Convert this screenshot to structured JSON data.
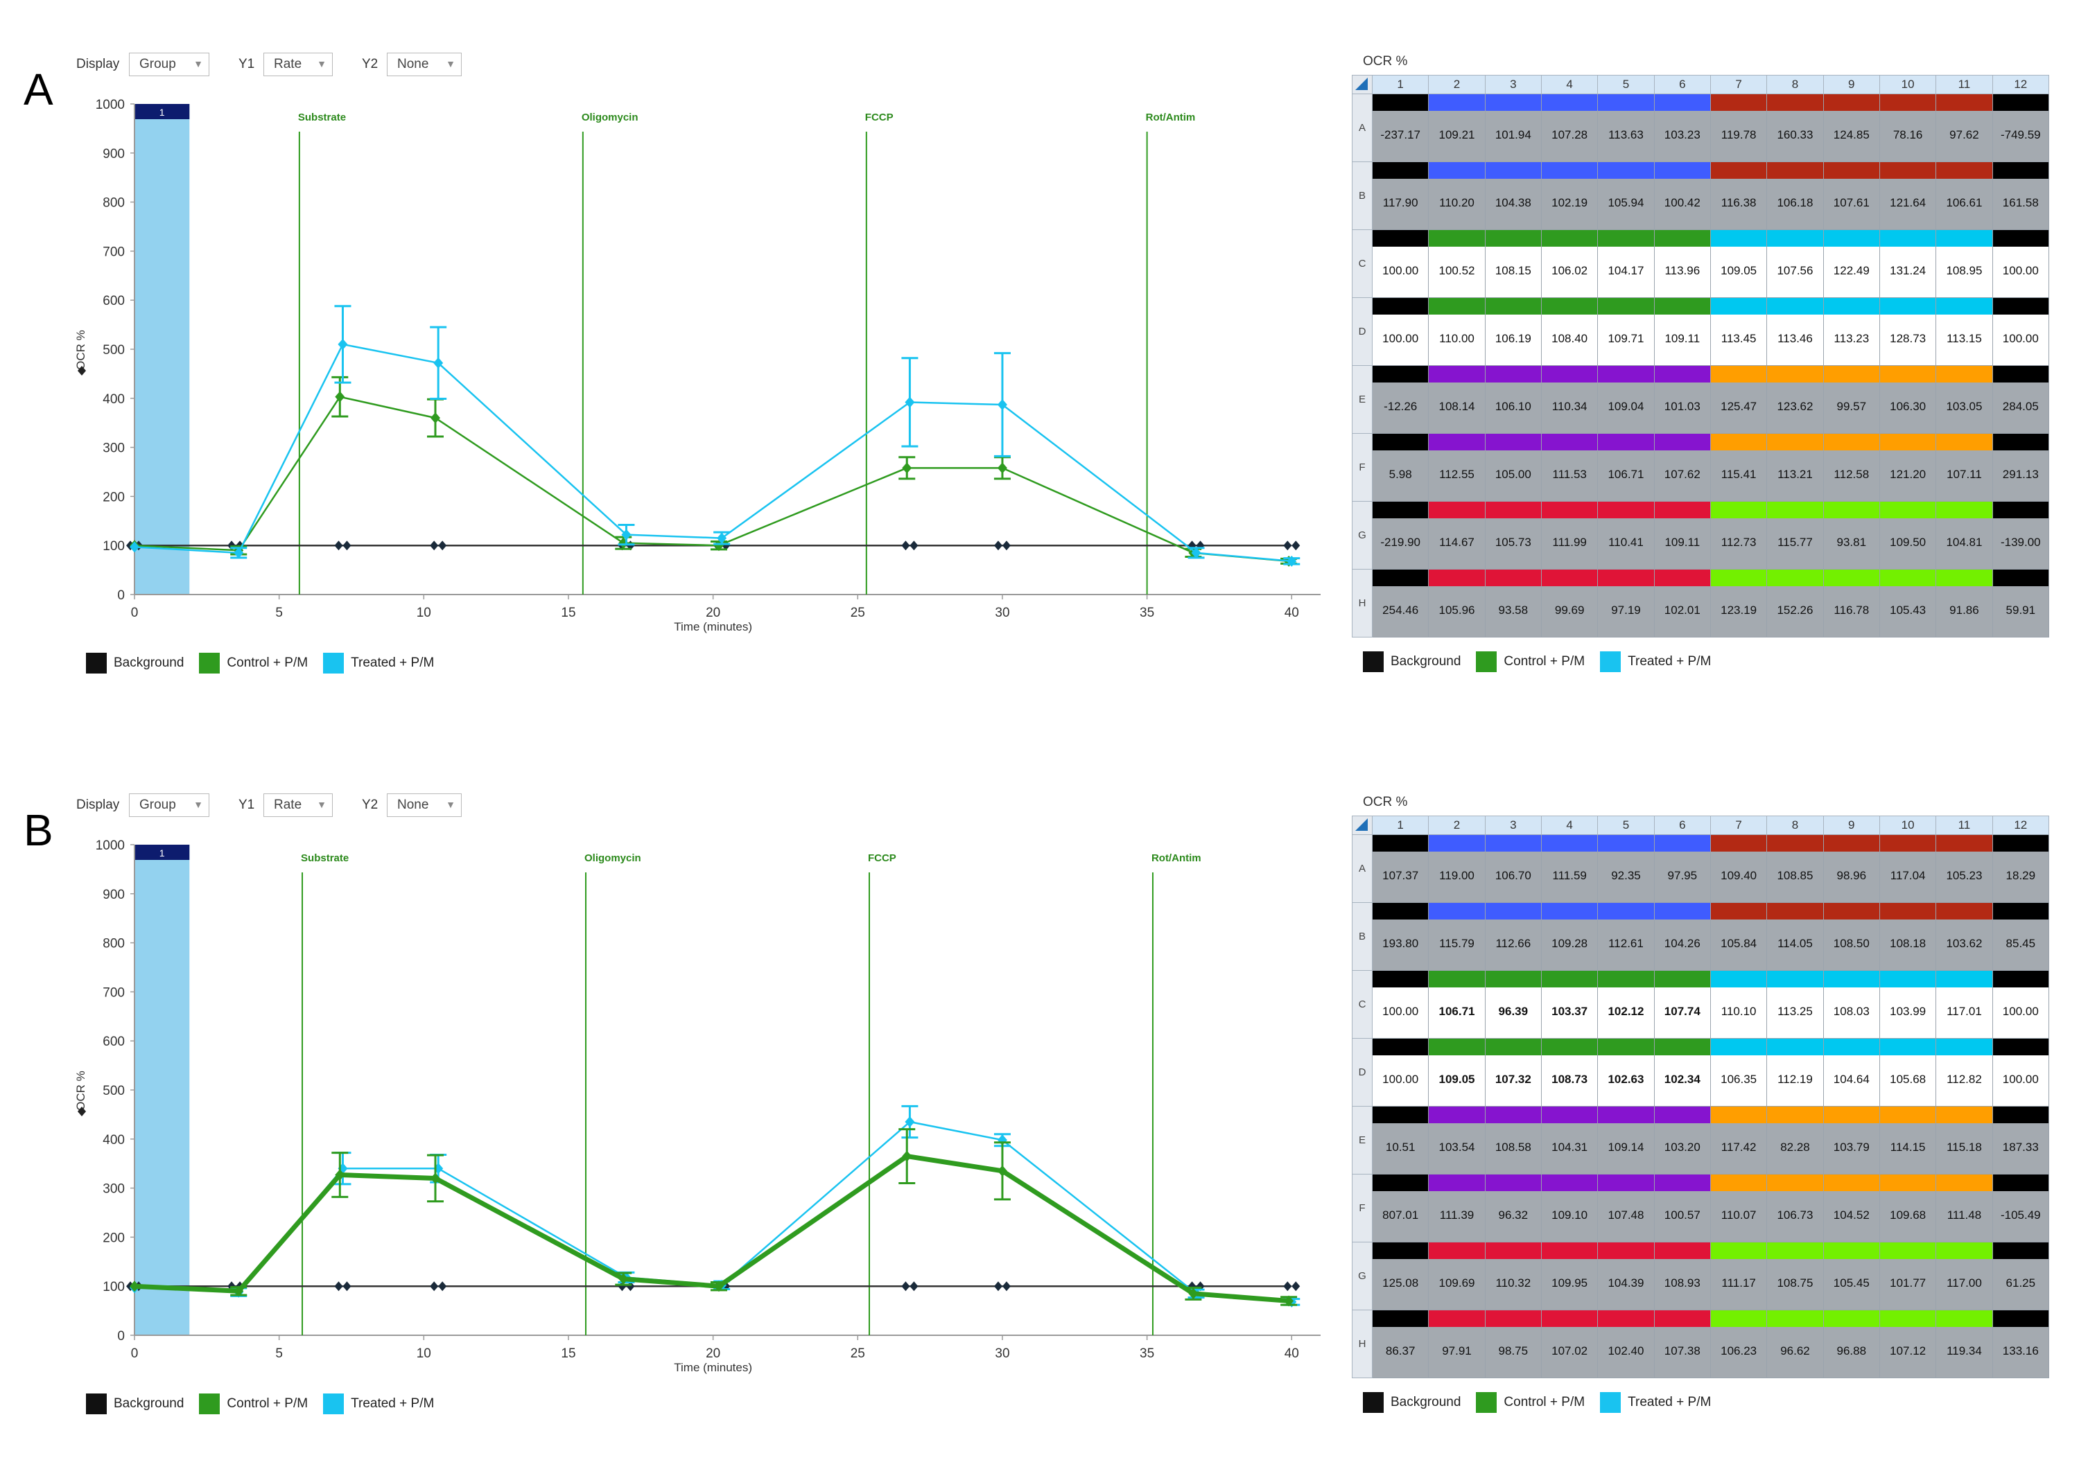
{
  "colors": {
    "background": "#111111",
    "control": "#2f9b1f",
    "treated": "#19c3f0",
    "injection": "#2f9b1f",
    "label_bar": "#0d1c6e",
    "shade": "#93d2ef",
    "blue": "#3f5cff",
    "darkred": "#b32914",
    "green": "#2f9b1f",
    "cyan": "#00c8f0",
    "purple": "#8614cf",
    "orange": "#ff9e00",
    "crimson": "#e01437",
    "lime": "#73f000",
    "black": "#000000",
    "gray_fill": "#a4aab0",
    "white_fill": "#ffffff"
  },
  "panels": [
    {
      "letter": "A",
      "controls": {
        "display_label": "Display",
        "display_value": "Group",
        "y1_label": "Y1",
        "y1_value": "Rate",
        "y2_label": "Y2",
        "y2_value": "None"
      },
      "chart": {
        "ylabel": "OCR %",
        "xlabel": "Time (minutes)",
        "yticks": [
          "0",
          "100",
          "200",
          "300",
          "400",
          "500",
          "600",
          "700",
          "800",
          "900",
          "1000"
        ],
        "xticks": [
          "0",
          "5",
          "10",
          "15",
          "20",
          "25",
          "30",
          "35",
          "40"
        ],
        "measure_label": "1",
        "injections": [
          {
            "label": "Substrate",
            "t": 5.7
          },
          {
            "label": "Oligomycin",
            "t": 15.5
          },
          {
            "label": "FCCP",
            "t": 25.3
          },
          {
            "label": "Rot/Antim",
            "t": 35.0
          }
        ]
      },
      "legend": [
        "Background",
        "Control + P/M",
        "Treated + P/M"
      ],
      "plate": {
        "title": "OCR %",
        "columns": [
          "1",
          "2",
          "3",
          "4",
          "5",
          "6",
          "7",
          "8",
          "9",
          "10",
          "11",
          "12"
        ],
        "rows": [
          {
            "label": "A",
            "values": [
              "-237.17",
              "109.21",
              "101.94",
              "107.28",
              "113.63",
              "103.23",
              "119.78",
              "160.33",
              "124.85",
              "78.16",
              "97.62",
              "-749.59"
            ]
          },
          {
            "label": "B",
            "values": [
              "117.90",
              "110.20",
              "104.38",
              "102.19",
              "105.94",
              "100.42",
              "116.38",
              "106.18",
              "107.61",
              "121.64",
              "106.61",
              "161.58"
            ]
          },
          {
            "label": "C",
            "values": [
              "100.00",
              "100.52",
              "108.15",
              "106.02",
              "104.17",
              "113.96",
              "109.05",
              "107.56",
              "122.49",
              "131.24",
              "108.95",
              "100.00"
            ]
          },
          {
            "label": "D",
            "values": [
              "100.00",
              "110.00",
              "106.19",
              "108.40",
              "109.71",
              "109.11",
              "113.45",
              "113.46",
              "113.23",
              "128.73",
              "113.15",
              "100.00"
            ]
          },
          {
            "label": "E",
            "values": [
              "-12.26",
              "108.14",
              "106.10",
              "110.34",
              "109.04",
              "101.03",
              "125.47",
              "123.62",
              "99.57",
              "106.30",
              "103.05",
              "284.05"
            ]
          },
          {
            "label": "F",
            "values": [
              "5.98",
              "112.55",
              "105.00",
              "111.53",
              "106.71",
              "107.62",
              "115.41",
              "113.21",
              "112.58",
              "121.20",
              "107.11",
              "291.13"
            ]
          },
          {
            "label": "G",
            "values": [
              "-219.90",
              "114.67",
              "105.73",
              "111.99",
              "110.41",
              "109.11",
              "112.73",
              "115.77",
              "93.81",
              "109.50",
              "104.81",
              "-139.00"
            ]
          },
          {
            "label": "H",
            "values": [
              "254.46",
              "105.96",
              "93.58",
              "99.69",
              "97.19",
              "102.01",
              "123.19",
              "152.26",
              "116.78",
              "105.43",
              "91.86",
              "59.91"
            ]
          }
        ],
        "bold_cells": []
      }
    },
    {
      "letter": "B",
      "controls": {
        "display_label": "Display",
        "display_value": "Group",
        "y1_label": "Y1",
        "y1_value": "Rate",
        "y2_label": "Y2",
        "y2_value": "None"
      },
      "chart": {
        "ylabel": "OCR %",
        "xlabel": "Time (minutes)",
        "yticks": [
          "0",
          "100",
          "200",
          "300",
          "400",
          "500",
          "600",
          "700",
          "800",
          "900",
          "1000"
        ],
        "xticks": [
          "0",
          "5",
          "10",
          "15",
          "20",
          "25",
          "30",
          "35",
          "40"
        ],
        "measure_label": "1",
        "injections": [
          {
            "label": "Substrate",
            "t": 5.8
          },
          {
            "label": "Oligomycin",
            "t": 15.6
          },
          {
            "label": "FCCP",
            "t": 25.4
          },
          {
            "label": "Rot/Antim",
            "t": 35.2
          }
        ]
      },
      "legend": [
        "Background",
        "Control + P/M",
        "Treated + P/M"
      ],
      "plate": {
        "title": "OCR %",
        "columns": [
          "1",
          "2",
          "3",
          "4",
          "5",
          "6",
          "7",
          "8",
          "9",
          "10",
          "11",
          "12"
        ],
        "rows": [
          {
            "label": "A",
            "values": [
              "107.37",
              "119.00",
              "106.70",
              "111.59",
              "92.35",
              "97.95",
              "109.40",
              "108.85",
              "98.96",
              "117.04",
              "105.23",
              "18.29"
            ]
          },
          {
            "label": "B",
            "values": [
              "193.80",
              "115.79",
              "112.66",
              "109.28",
              "112.61",
              "104.26",
              "105.84",
              "114.05",
              "108.50",
              "108.18",
              "103.62",
              "85.45"
            ]
          },
          {
            "label": "C",
            "values": [
              "100.00",
              "106.71",
              "96.39",
              "103.37",
              "102.12",
              "107.74",
              "110.10",
              "113.25",
              "108.03",
              "103.99",
              "117.01",
              "100.00"
            ]
          },
          {
            "label": "D",
            "values": [
              "100.00",
              "109.05",
              "107.32",
              "108.73",
              "102.63",
              "102.34",
              "106.35",
              "112.19",
              "104.64",
              "105.68",
              "112.82",
              "100.00"
            ]
          },
          {
            "label": "E",
            "values": [
              "10.51",
              "103.54",
              "108.58",
              "104.31",
              "109.14",
              "103.20",
              "117.42",
              "82.28",
              "103.79",
              "114.15",
              "115.18",
              "187.33"
            ]
          },
          {
            "label": "F",
            "values": [
              "807.01",
              "111.39",
              "96.32",
              "109.10",
              "107.48",
              "100.57",
              "110.07",
              "106.73",
              "104.52",
              "109.68",
              "111.48",
              "-105.49"
            ]
          },
          {
            "label": "G",
            "values": [
              "125.08",
              "109.69",
              "110.32",
              "109.95",
              "104.39",
              "108.93",
              "111.17",
              "108.75",
              "105.45",
              "101.77",
              "117.00",
              "61.25"
            ]
          },
          {
            "label": "H",
            "values": [
              "86.37",
              "97.91",
              "98.75",
              "107.02",
              "102.40",
              "107.38",
              "106.23",
              "96.62",
              "96.88",
              "107.12",
              "119.34",
              "133.16"
            ]
          }
        ],
        "bold_cells": [
          "C2",
          "C3",
          "C4",
          "C5",
          "C6",
          "D2",
          "D3",
          "D4",
          "D5",
          "D6"
        ]
      }
    }
  ],
  "chart_data": [
    {
      "type": "line",
      "title": "A",
      "xlabel": "Time (minutes)",
      "ylabel": "OCR %",
      "xlim": [
        0,
        41
      ],
      "ylim": [
        0,
        1000
      ],
      "series": [
        {
          "name": "Background",
          "x": [
            0,
            3.5,
            7.2,
            10.5,
            17.0,
            20.3,
            26.8,
            30.0,
            36.7,
            40.0
          ],
          "values": [
            100,
            100,
            100,
            100,
            100,
            100,
            100,
            100,
            100,
            100
          ]
        },
        {
          "name": "Control + P/M",
          "x": [
            0,
            3.6,
            7.1,
            10.4,
            16.9,
            20.2,
            26.7,
            30.0,
            36.6,
            39.9
          ],
          "values": [
            100,
            90,
            403,
            360,
            105,
            100,
            258,
            258,
            85,
            68
          ],
          "err": [
            0,
            8,
            40,
            38,
            12,
            8,
            22,
            22,
            8,
            5
          ]
        },
        {
          "name": "Treated + P/M",
          "x": [
            0,
            3.6,
            7.2,
            10.5,
            17.0,
            20.3,
            26.8,
            30.0,
            36.7,
            40.0
          ],
          "values": [
            97,
            85,
            510,
            472,
            122,
            115,
            392,
            387,
            85,
            68
          ],
          "err": [
            0,
            10,
            78,
            73,
            20,
            12,
            90,
            105,
            10,
            6
          ]
        }
      ]
    },
    {
      "type": "line",
      "title": "B",
      "xlabel": "Time (minutes)",
      "ylabel": "OCR %",
      "xlim": [
        0,
        41
      ],
      "ylim": [
        0,
        1000
      ],
      "series": [
        {
          "name": "Background",
          "x": [
            0,
            3.5,
            7.2,
            10.5,
            17.0,
            20.3,
            26.8,
            30.0,
            36.7,
            40.0
          ],
          "values": [
            100,
            100,
            100,
            100,
            100,
            100,
            100,
            100,
            100,
            100
          ]
        },
        {
          "name": "Control + P/M",
          "x": [
            0,
            3.6,
            7.1,
            10.4,
            16.9,
            20.2,
            26.7,
            30.0,
            36.6,
            39.9
          ],
          "values": [
            100,
            90,
            327,
            320,
            115,
            100,
            365,
            335,
            85,
            70
          ],
          "err": [
            0,
            8,
            45,
            47,
            12,
            8,
            55,
            58,
            12,
            8
          ]
        },
        {
          "name": "Treated + P/M",
          "x": [
            0,
            3.6,
            7.2,
            10.5,
            17.0,
            20.3,
            26.8,
            30.0,
            36.7,
            40.0
          ],
          "values": [
            97,
            88,
            340,
            340,
            118,
            102,
            435,
            398,
            85,
            68
          ],
          "err": [
            0,
            8,
            32,
            28,
            10,
            8,
            32,
            12,
            8,
            6
          ]
        }
      ]
    }
  ]
}
